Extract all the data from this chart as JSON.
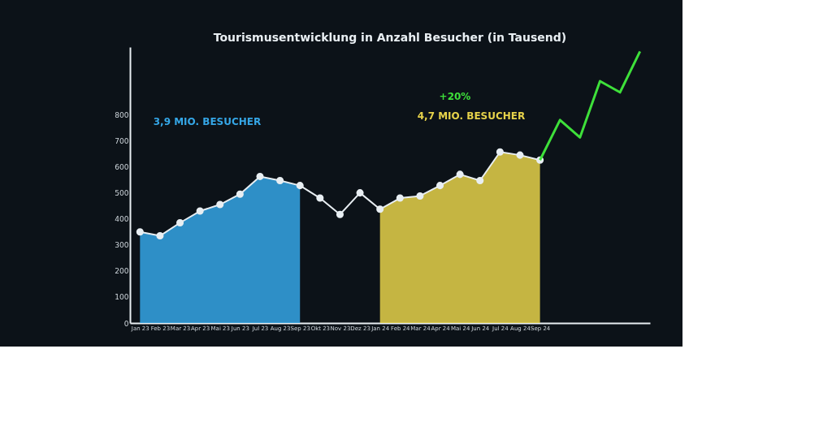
{
  "chart_data": {
    "type": "line",
    "title": "Tourismusentwicklung in Anzahl Besucher (in Tausend)",
    "categories": [
      "Jan 23",
      "Feb 23",
      "Mar 23",
      "Apr 23",
      "Mai 23",
      "Jun 23",
      "Jul 23",
      "Aug 23",
      "Sep 23",
      "Okt 23",
      "Nov 23",
      "Dez 23",
      "Jan 24",
      "Feb 24",
      "Mar 24",
      "Apr 24",
      "Mai 24",
      "Jun 24",
      "Jul 24",
      "Aug 24",
      "Sep 24",
      null,
      null,
      null,
      null,
      null
    ],
    "series": [
      {
        "type": "area",
        "color": "#35a6e6",
        "values": [
          350,
          335,
          385,
          430,
          455,
          495,
          563,
          547,
          528,
          null,
          null,
          null,
          null,
          null,
          null,
          null,
          null,
          null,
          null,
          null,
          null,
          null,
          null,
          null,
          null,
          null
        ]
      },
      {
        "type": "area",
        "color": "#e6d24a",
        "values": [
          null,
          null,
          null,
          null,
          null,
          null,
          null,
          null,
          null,
          null,
          null,
          null,
          437,
          480,
          488,
          528,
          571,
          547,
          657,
          645,
          626,
          null,
          null,
          null,
          null,
          null
        ]
      },
      {
        "color": "#e8eef2",
        "marker": "circle",
        "values": [
          350,
          335,
          385,
          430,
          455,
          495,
          563,
          547,
          528,
          480,
          417,
          500,
          437,
          480,
          488,
          528,
          571,
          547,
          657,
          645,
          626,
          null,
          null,
          null,
          null,
          null
        ]
      },
      {
        "color": "#3ee03a",
        "marker": "none",
        "values": [
          null,
          null,
          null,
          null,
          null,
          null,
          null,
          null,
          null,
          null,
          null,
          null,
          null,
          null,
          null,
          null,
          null,
          null,
          null,
          null,
          626,
          780,
          713,
          929,
          886,
          1043
        ]
      }
    ],
    "annotations": [
      "3,9 MIO. BESUCHER",
      "+20%",
      "4,7 MIO. BESUCHER"
    ],
    "ylim": [
      0,
      1060
    ],
    "yticks": [
      0,
      100,
      200,
      300,
      400,
      500,
      600,
      700,
      800
    ],
    "grid": false
  }
}
